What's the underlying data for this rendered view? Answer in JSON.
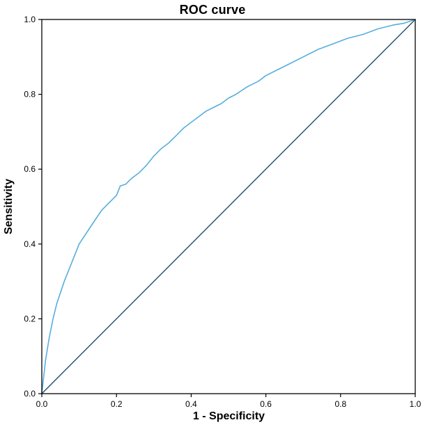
{
  "chart_data": {
    "type": "line",
    "title": "ROC curve",
    "xlabel": "1 - Specificity",
    "ylabel": "Sensitivity",
    "xlim": [
      0,
      1
    ],
    "ylim": [
      0,
      1
    ],
    "x_ticks": [
      "0.0",
      "0.2",
      "0.4",
      "0.6",
      "0.8",
      "1.0"
    ],
    "y_ticks": [
      "0.0",
      "0.2",
      "0.4",
      "0.6",
      "0.8",
      "1.0"
    ],
    "grid": false,
    "legend": "none",
    "frame_color": "#000000",
    "background": "#ffffff",
    "series": [
      {
        "id": "roc-curve",
        "name": "ROC curve",
        "color": "#56aede",
        "width": 1.6,
        "points": [
          [
            0.0,
            0.0
          ],
          [
            0.005,
            0.045
          ],
          [
            0.01,
            0.09
          ],
          [
            0.02,
            0.15
          ],
          [
            0.03,
            0.2
          ],
          [
            0.04,
            0.24
          ],
          [
            0.05,
            0.27
          ],
          [
            0.06,
            0.3
          ],
          [
            0.08,
            0.35
          ],
          [
            0.1,
            0.4
          ],
          [
            0.12,
            0.43
          ],
          [
            0.14,
            0.46
          ],
          [
            0.16,
            0.49
          ],
          [
            0.18,
            0.51
          ],
          [
            0.2,
            0.53
          ],
          [
            0.21,
            0.555
          ],
          [
            0.225,
            0.56
          ],
          [
            0.24,
            0.575
          ],
          [
            0.26,
            0.59
          ],
          [
            0.28,
            0.61
          ],
          [
            0.3,
            0.635
          ],
          [
            0.32,
            0.655
          ],
          [
            0.34,
            0.67
          ],
          [
            0.36,
            0.69
          ],
          [
            0.38,
            0.71
          ],
          [
            0.4,
            0.725
          ],
          [
            0.42,
            0.74
          ],
          [
            0.44,
            0.755
          ],
          [
            0.46,
            0.765
          ],
          [
            0.48,
            0.775
          ],
          [
            0.5,
            0.79
          ],
          [
            0.52,
            0.8
          ],
          [
            0.55,
            0.82
          ],
          [
            0.58,
            0.835
          ],
          [
            0.6,
            0.85
          ],
          [
            0.63,
            0.865
          ],
          [
            0.66,
            0.88
          ],
          [
            0.7,
            0.9
          ],
          [
            0.74,
            0.92
          ],
          [
            0.78,
            0.935
          ],
          [
            0.82,
            0.95
          ],
          [
            0.86,
            0.96
          ],
          [
            0.9,
            0.975
          ],
          [
            0.94,
            0.985
          ],
          [
            0.97,
            0.99
          ],
          [
            1.0,
            1.0
          ]
        ]
      },
      {
        "id": "reference-line",
        "name": "Reference line (diagonal)",
        "color": "#1f4e6b",
        "width": 1.4,
        "points": [
          [
            0,
            0
          ],
          [
            1,
            1
          ]
        ]
      }
    ]
  }
}
